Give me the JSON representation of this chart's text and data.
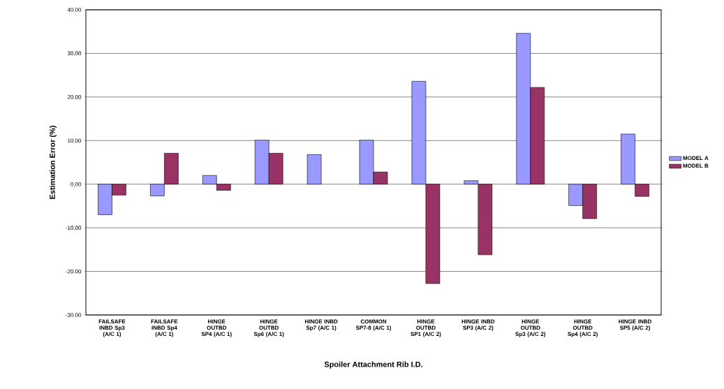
{
  "chart_data": {
    "type": "bar",
    "xlabel": "Spoiler Attachment Rib I.D.",
    "ylabel": "Estimation Error (%)",
    "categories": [
      "FAILSAFE INBD Sp3 (A/C 1)",
      "FAILSAFE INBD Sp4 (A/C 1)",
      "HINGE OUTBD SP4 (A/C 1)",
      "HINGE OUTBD Sp6 (A/C 1)",
      "HINGE INBD Sp7 (A/C 1)",
      "COMMON SP7-8 (A/C 1)",
      "HINGE OUTBD SP1 (A/C 2)",
      "HINGE INBD SP3 (A/C 2)",
      "HINGE OUTBD Sp3 (A/C 2)",
      "HINGE OUTBD Sp4 (A/C 2)",
      "HINGE INBD SP5 (A/C 2)"
    ],
    "series": [
      {
        "name": "MODEL A",
        "color": "#9999ff",
        "values": [
          -7.0,
          -2.7,
          2.0,
          10.1,
          6.8,
          10.1,
          23.6,
          0.8,
          34.6,
          -4.9,
          11.5
        ]
      },
      {
        "name": "MODEL B",
        "color": "#993366",
        "values": [
          -2.5,
          7.1,
          -1.4,
          7.1,
          null,
          2.8,
          -22.8,
          -16.2,
          22.2,
          -7.9,
          -2.8
        ]
      }
    ],
    "ylim": [
      -30,
      40
    ],
    "yticks": [
      {
        "value": -30,
        "label": "-30.00"
      },
      {
        "value": -20,
        "label": "-20.00"
      },
      {
        "value": -10,
        "label": "-10.00"
      },
      {
        "value": 0,
        "label": "0.00"
      },
      {
        "value": 10,
        "label": "10.00"
      },
      {
        "value": 20,
        "label": "20.00"
      },
      {
        "value": 30,
        "label": "30.00"
      },
      {
        "value": 40,
        "label": "40.00"
      }
    ],
    "grid": "y",
    "legend": "right"
  }
}
